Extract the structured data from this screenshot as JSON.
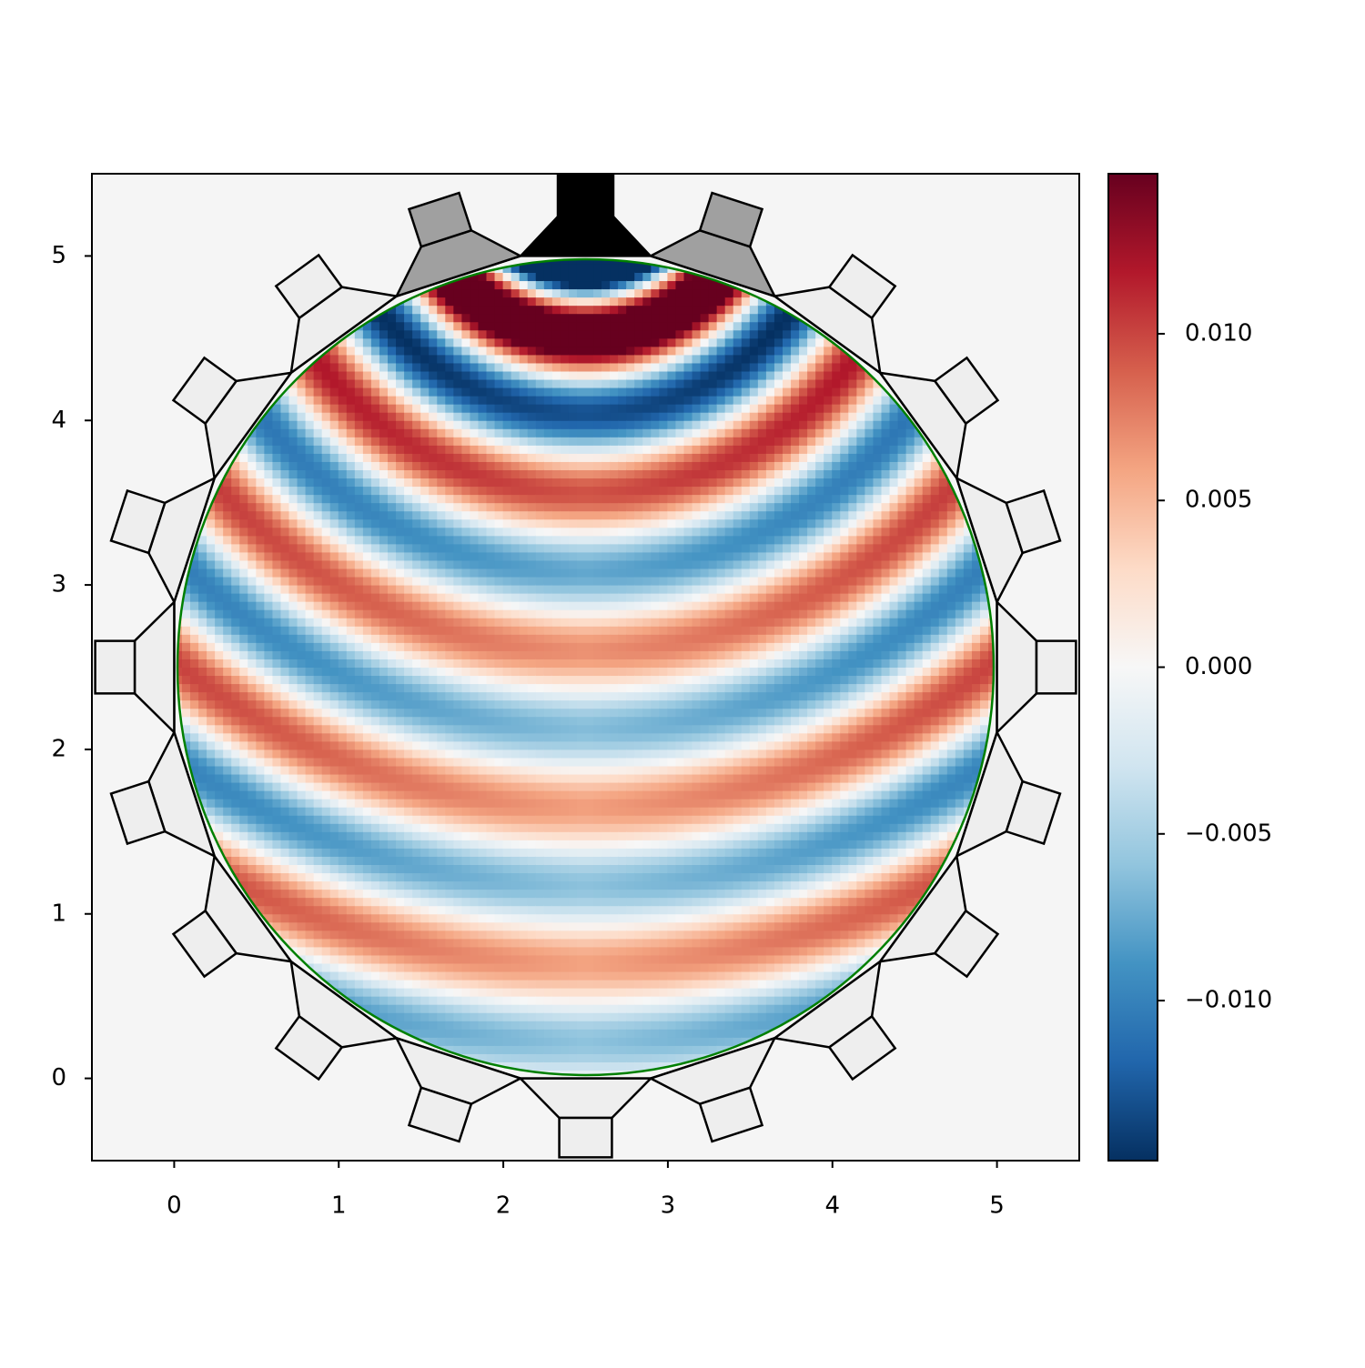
{
  "chart_data": {
    "type": "heatmap",
    "xlim": [
      -0.5,
      5.5
    ],
    "ylim": [
      -0.5,
      5.5
    ],
    "xticks": [
      0,
      1,
      2,
      3,
      4,
      5
    ],
    "yticks": [
      0,
      1,
      2,
      3,
      4,
      5
    ],
    "clim": [
      -0.0148,
      0.0148
    ],
    "cticks": [
      {
        "value": -0.01,
        "label": "−0.010"
      },
      {
        "value": -0.005,
        "label": "−0.005"
      },
      {
        "value": 0,
        "label": "0.000"
      },
      {
        "value": 0.005,
        "label": "0.005"
      },
      {
        "value": 0.01,
        "label": "0.010"
      }
    ],
    "colormap": [
      "#053061",
      "#2166ac",
      "#4393c3",
      "#92c5de",
      "#d1e5f0",
      "#f7f7f7",
      "#fddbc7",
      "#f4a582",
      "#d6604d",
      "#b2182b",
      "#67001f"
    ],
    "outline_color": "#008000"
  }
}
